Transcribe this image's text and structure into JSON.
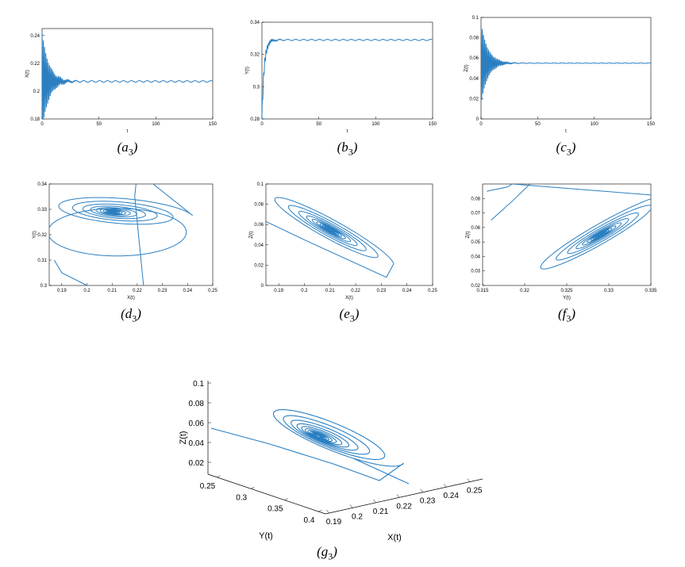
{
  "chart_data": [
    {
      "id": "a3",
      "type": "line",
      "caption_letter": "a",
      "caption_sub": "3",
      "xlabel": "t",
      "ylabel": "X(t)",
      "xlim": [
        0,
        150
      ],
      "ylim": [
        0.18,
        0.245
      ],
      "xticks": [
        "0",
        "50",
        "100",
        "150"
      ],
      "yticks": [
        "0.18",
        "0.2",
        "0.22",
        "0.24"
      ],
      "yticks_values": [
        0.18,
        0.2,
        0.22,
        0.24
      ],
      "xticks_values": [
        0,
        50,
        100,
        150
      ],
      "series": [
        {
          "equilibrium": 0.207,
          "initial_amplitude": 0.035,
          "decay_time": 6,
          "oscillation_period": 1.1,
          "t_end": 150,
          "color": "#2a7fc1"
        }
      ]
    },
    {
      "id": "b3",
      "type": "line",
      "caption_letter": "b",
      "caption_sub": "3",
      "xlabel": "t",
      "ylabel": "Y(t)",
      "xlim": [
        0,
        150
      ],
      "ylim": [
        0.28,
        0.34
      ],
      "xticks": [
        "0",
        "50",
        "100",
        "150"
      ],
      "yticks": [
        "0.28",
        "0.3",
        "0.32",
        "0.34"
      ],
      "yticks_values": [
        0.28,
        0.3,
        0.32,
        0.34
      ],
      "xticks_values": [
        0,
        50,
        100,
        150
      ],
      "series": [
        {
          "equilibrium": 0.329,
          "start_value": 0.28,
          "rise_time": 2,
          "initial_amplitude": 0.004,
          "decay_time": 5,
          "oscillation_period": 1.1,
          "t_end": 150,
          "color": "#2a7fc1"
        }
      ]
    },
    {
      "id": "c3",
      "type": "line",
      "caption_letter": "c",
      "caption_sub": "3",
      "xlabel": "t",
      "ylabel": "Z(t)",
      "xlim": [
        0,
        150
      ],
      "ylim": [
        0,
        0.1
      ],
      "xticks": [
        "0",
        "50",
        "100",
        "150"
      ],
      "yticks": [
        "0",
        "0.02",
        "0.04",
        "0.06",
        "0.08",
        "0.1"
      ],
      "yticks_values": [
        0,
        0.02,
        0.04,
        0.06,
        0.08,
        0.1
      ],
      "xticks_values": [
        0,
        50,
        100,
        150
      ],
      "series": [
        {
          "equilibrium": 0.055,
          "initial_amplitude": 0.04,
          "decay_time": 6,
          "oscillation_period": 1.1,
          "t_end": 150,
          "color": "#2a7fc1"
        }
      ]
    },
    {
      "id": "d3",
      "type": "line",
      "caption_letter": "d",
      "caption_sub": "3",
      "xlabel": "X(t)",
      "ylabel": "Y(t)",
      "xlim": [
        0.185,
        0.25
      ],
      "ylim": [
        0.3,
        0.34
      ],
      "xticks": [
        "0.19",
        "0.2",
        "0.21",
        "0.22",
        "0.23",
        "0.24",
        "0.25"
      ],
      "yticks": [
        "0.3",
        "0.31",
        "0.32",
        "0.33",
        "0.34"
      ],
      "xticks_values": [
        0.19,
        0.2,
        0.21,
        0.22,
        0.23,
        0.24,
        0.25
      ],
      "yticks_values": [
        0.3,
        0.31,
        0.32,
        0.33,
        0.34
      ],
      "series": [
        {
          "center": [
            0.21,
            0.329
          ],
          "color": "#2a7fc1"
        }
      ]
    },
    {
      "id": "e3",
      "type": "line",
      "caption_letter": "e",
      "caption_sub": "3",
      "xlabel": "X(t)",
      "ylabel": "Z(t)",
      "xlim": [
        0.185,
        0.25
      ],
      "ylim": [
        0,
        0.1
      ],
      "xticks": [
        "0.19",
        "0.2",
        "0.21",
        "0.22",
        "0.23",
        "0.24",
        "0.25"
      ],
      "yticks": [
        "0",
        "0.02",
        "0.04",
        "0.06",
        "0.08",
        "0.1"
      ],
      "xticks_values": [
        0.19,
        0.2,
        0.21,
        0.22,
        0.23,
        0.24,
        0.25
      ],
      "yticks_values": [
        0,
        0.02,
        0.04,
        0.06,
        0.08,
        0.1
      ],
      "series": [
        {
          "center": [
            0.21,
            0.055
          ],
          "color": "#2a7fc1"
        }
      ]
    },
    {
      "id": "f3",
      "type": "line",
      "caption_letter": "f",
      "caption_sub": "3",
      "xlabel": "Y(t)",
      "ylabel": "Z(t)",
      "xlim": [
        0.315,
        0.335
      ],
      "ylim": [
        0.02,
        0.09
      ],
      "xticks": [
        "0.315",
        "0.32",
        "0.325",
        "0.33",
        "0.335"
      ],
      "yticks": [
        "0.02",
        "0.03",
        "0.04",
        "0.05",
        "0.06",
        "0.07",
        "0.08"
      ],
      "xticks_values": [
        0.315,
        0.32,
        0.325,
        0.33,
        0.335
      ],
      "yticks_values": [
        0.02,
        0.03,
        0.04,
        0.05,
        0.06,
        0.07,
        0.08
      ],
      "series": [
        {
          "center": [
            0.329,
            0.055
          ],
          "color": "#2a7fc1"
        }
      ]
    },
    {
      "id": "g3",
      "type": "line",
      "caption_letter": "g",
      "caption_sub": "3",
      "xlabel": "X(t)",
      "ylabel": "Y(t)",
      "zlabel": "Z(t)",
      "xticks": [
        "0.19",
        "0.2",
        "0.21",
        "0.22",
        "0.23",
        "0.24",
        "0.25"
      ],
      "yticks": [
        "0.4",
        "0.35",
        "0.3",
        "0.25"
      ],
      "zticks": [
        "0.02",
        "0.04",
        "0.06",
        "0.08",
        "0.1"
      ],
      "series": [
        {
          "center": [
            0.21,
            0.329,
            0.055
          ],
          "color": "#2a7fc1"
        }
      ]
    }
  ]
}
